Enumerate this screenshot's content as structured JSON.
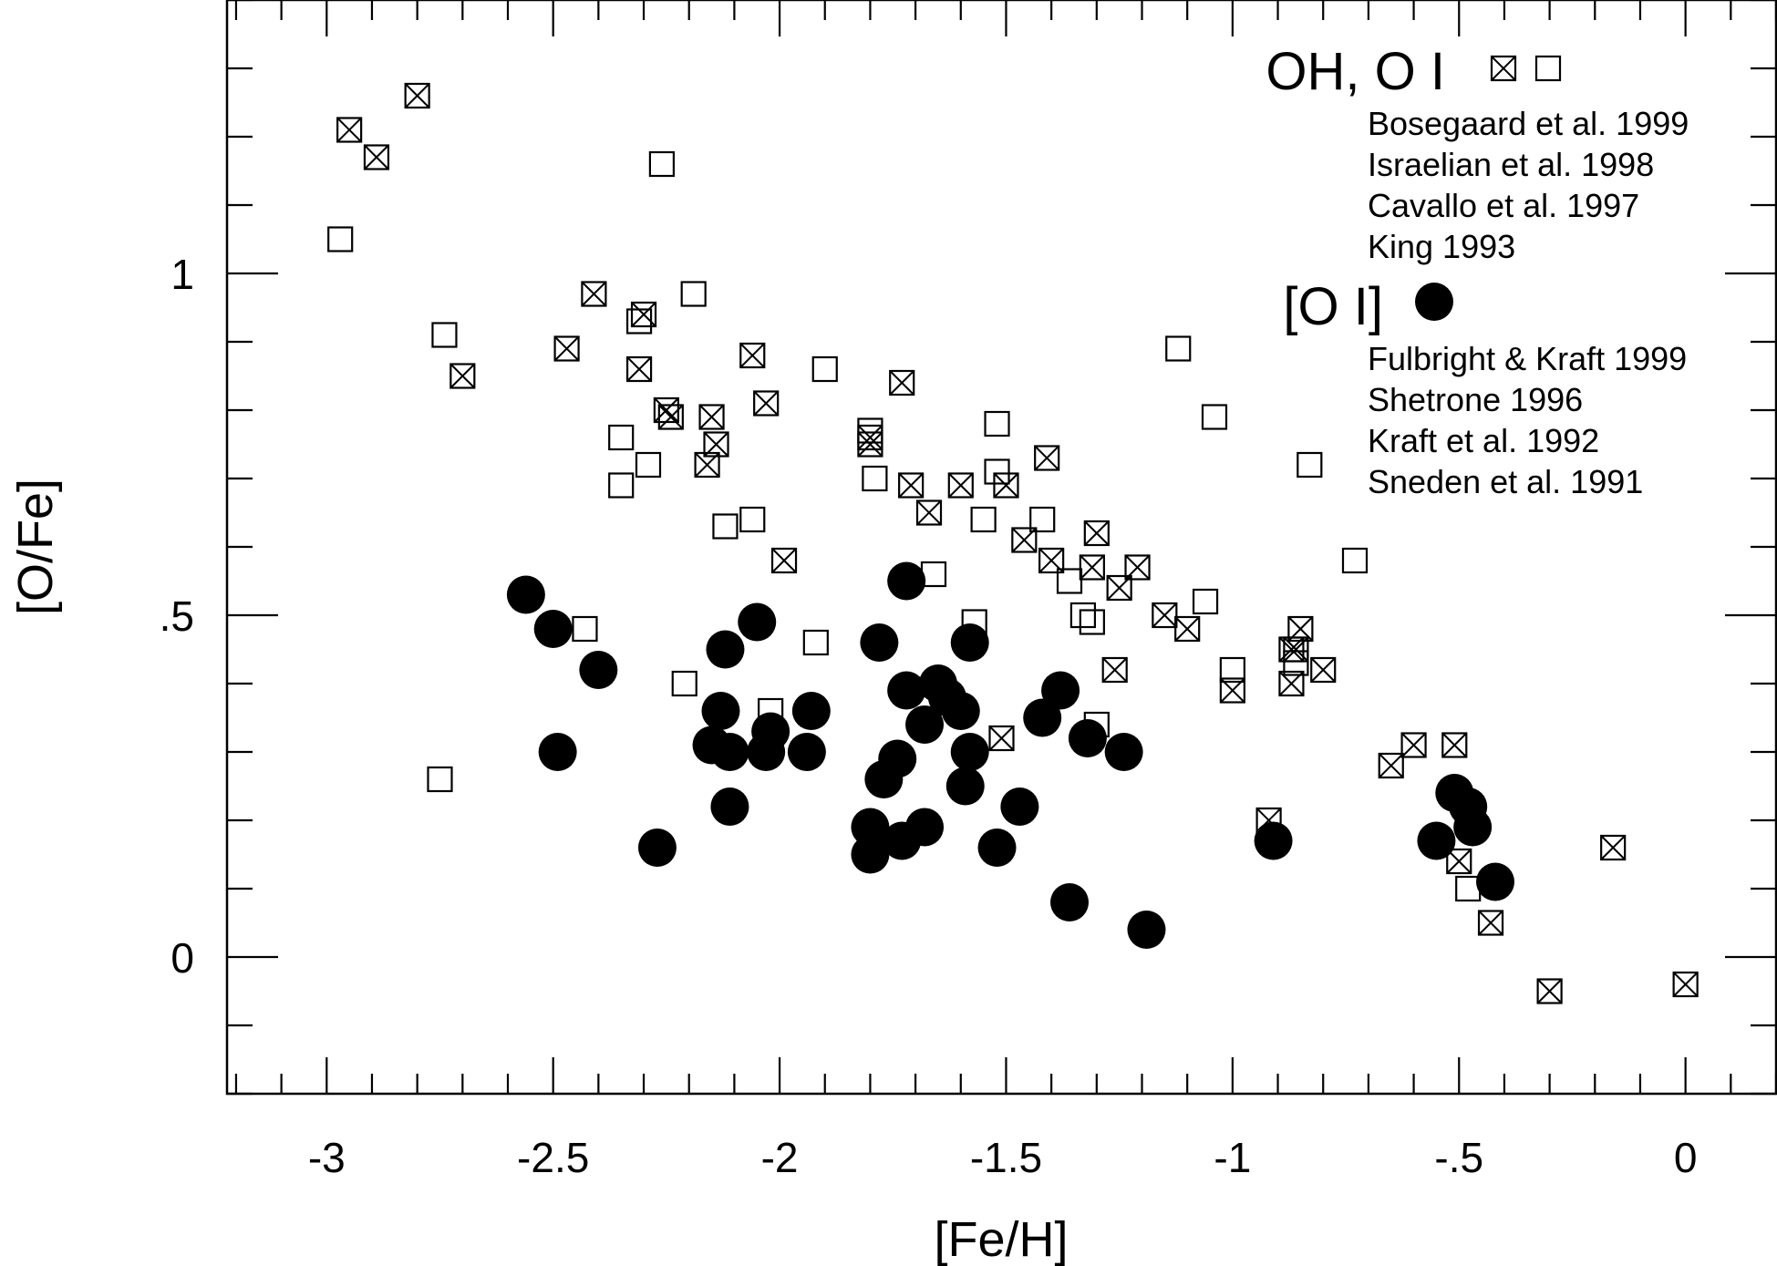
{
  "chart_data": {
    "type": "scatter",
    "xlabel": "[Fe/H]",
    "ylabel": "[O/Fe]",
    "xlim": [
      -3.22,
      0.2
    ],
    "ylim": [
      -0.2,
      1.4
    ],
    "x_ticks": [
      {
        "value": -3,
        "label": "-3"
      },
      {
        "value": -2.5,
        "label": "-2.5"
      },
      {
        "value": -2,
        "label": "-2"
      },
      {
        "value": -1.5,
        "label": "-1.5"
      },
      {
        "value": -1,
        "label": "-1"
      },
      {
        "value": -0.5,
        "label": "-.5"
      },
      {
        "value": 0,
        "label": "0"
      }
    ],
    "y_ticks": [
      {
        "value": 0,
        "label": "0"
      },
      {
        "value": 0.5,
        "label": ".5"
      },
      {
        "value": 1,
        "label": "1"
      }
    ],
    "grid": false,
    "legend": {
      "placement": "top-right",
      "groups": [
        {
          "heading": "OH, O I",
          "markers": [
            "crossed-square",
            "open-square"
          ],
          "references": [
            "Bosegaard et al. 1999",
            "Israelian et al. 1998",
            "Cavallo et al. 1997",
            "King 1993"
          ]
        },
        {
          "heading": "[O I]",
          "markers": [
            "filled-circle"
          ],
          "references": [
            "Fulbright & Kraft 1999",
            "Shetrone 1996",
            "Kraft et al. 1992",
            "Sneden et al. 1991"
          ]
        }
      ]
    },
    "series": [
      {
        "marker": "crossed-square",
        "points": [
          [
            -2.8,
            1.26
          ],
          [
            -2.95,
            1.21
          ],
          [
            -2.89,
            1.17
          ],
          [
            -2.7,
            0.85
          ],
          [
            -2.41,
            0.97
          ],
          [
            -2.47,
            0.89
          ],
          [
            -2.3,
            0.94
          ],
          [
            -2.31,
            0.86
          ],
          [
            -2.25,
            0.8
          ],
          [
            -2.24,
            0.79
          ],
          [
            -2.15,
            0.79
          ],
          [
            -2.14,
            0.75
          ],
          [
            -2.16,
            0.72
          ],
          [
            -2.06,
            0.88
          ],
          [
            -2.03,
            0.81
          ],
          [
            -1.99,
            0.58
          ],
          [
            -1.8,
            0.76
          ],
          [
            -1.8,
            0.75
          ],
          [
            -1.73,
            0.84
          ],
          [
            -1.71,
            0.69
          ],
          [
            -1.67,
            0.65
          ],
          [
            -1.6,
            0.69
          ],
          [
            -1.5,
            0.69
          ],
          [
            -1.41,
            0.73
          ],
          [
            -1.46,
            0.61
          ],
          [
            -1.4,
            0.58
          ],
          [
            -1.3,
            0.62
          ],
          [
            -1.31,
            0.57
          ],
          [
            -1.21,
            0.57
          ],
          [
            -1.25,
            0.54
          ],
          [
            -1.15,
            0.5
          ],
          [
            -1.1,
            0.48
          ],
          [
            -0.85,
            0.48
          ],
          [
            -0.87,
            0.45
          ],
          [
            -0.86,
            0.45
          ],
          [
            -0.87,
            0.4
          ],
          [
            -0.8,
            0.42
          ],
          [
            -1.26,
            0.42
          ],
          [
            -1.0,
            0.39
          ],
          [
            -1.51,
            0.32
          ],
          [
            -0.65,
            0.28
          ],
          [
            -0.6,
            0.31
          ],
          [
            -0.51,
            0.31
          ],
          [
            -0.92,
            0.2
          ],
          [
            -0.5,
            0.14
          ],
          [
            -0.16,
            0.16
          ],
          [
            -0.43,
            0.05
          ],
          [
            -0.3,
            -0.05
          ],
          [
            0.0,
            -0.04
          ]
        ]
      },
      {
        "marker": "open-square",
        "points": [
          [
            -2.97,
            1.05
          ],
          [
            -2.26,
            1.16
          ],
          [
            -2.74,
            0.91
          ],
          [
            -2.31,
            0.93
          ],
          [
            -2.19,
            0.97
          ],
          [
            -2.35,
            0.76
          ],
          [
            -2.35,
            0.69
          ],
          [
            -2.29,
            0.72
          ],
          [
            -2.12,
            0.63
          ],
          [
            -2.06,
            0.64
          ],
          [
            -1.9,
            0.86
          ],
          [
            -1.8,
            0.77
          ],
          [
            -1.79,
            0.7
          ],
          [
            -1.52,
            0.78
          ],
          [
            -1.52,
            0.71
          ],
          [
            -1.55,
            0.64
          ],
          [
            -1.42,
            0.64
          ],
          [
            -1.12,
            0.89
          ],
          [
            -1.04,
            0.79
          ],
          [
            -0.83,
            0.72
          ],
          [
            -0.73,
            0.58
          ],
          [
            -1.66,
            0.56
          ],
          [
            -1.36,
            0.55
          ],
          [
            -1.33,
            0.5
          ],
          [
            -1.31,
            0.49
          ],
          [
            -1.57,
            0.49
          ],
          [
            -1.06,
            0.52
          ],
          [
            -2.43,
            0.48
          ],
          [
            -1.92,
            0.46
          ],
          [
            -2.21,
            0.4
          ],
          [
            -2.02,
            0.36
          ],
          [
            -1.0,
            0.42
          ],
          [
            -0.86,
            0.43
          ],
          [
            -1.3,
            0.34
          ],
          [
            -2.75,
            0.26
          ],
          [
            -0.48,
            0.1
          ]
        ]
      },
      {
        "marker": "filled-circle",
        "points": [
          [
            -2.56,
            0.53
          ],
          [
            -2.5,
            0.48
          ],
          [
            -2.4,
            0.42
          ],
          [
            -2.49,
            0.3
          ],
          [
            -2.27,
            0.16
          ],
          [
            -2.12,
            0.45
          ],
          [
            -2.05,
            0.49
          ],
          [
            -2.13,
            0.36
          ],
          [
            -2.15,
            0.31
          ],
          [
            -2.11,
            0.3
          ],
          [
            -2.02,
            0.33
          ],
          [
            -2.03,
            0.3
          ],
          [
            -1.93,
            0.36
          ],
          [
            -1.94,
            0.3
          ],
          [
            -2.11,
            0.22
          ],
          [
            -1.72,
            0.55
          ],
          [
            -1.78,
            0.46
          ],
          [
            -1.72,
            0.39
          ],
          [
            -1.65,
            0.4
          ],
          [
            -1.63,
            0.38
          ],
          [
            -1.68,
            0.34
          ],
          [
            -1.6,
            0.36
          ],
          [
            -1.58,
            0.46
          ],
          [
            -1.58,
            0.3
          ],
          [
            -1.74,
            0.29
          ],
          [
            -1.77,
            0.26
          ],
          [
            -1.59,
            0.25
          ],
          [
            -1.47,
            0.22
          ],
          [
            -1.8,
            0.19
          ],
          [
            -1.73,
            0.17
          ],
          [
            -1.68,
            0.19
          ],
          [
            -1.8,
            0.15
          ],
          [
            -1.52,
            0.16
          ],
          [
            -1.38,
            0.39
          ],
          [
            -1.42,
            0.35
          ],
          [
            -1.32,
            0.32
          ],
          [
            -1.24,
            0.3
          ],
          [
            -1.36,
            0.08
          ],
          [
            -1.19,
            0.04
          ],
          [
            -0.91,
            0.17
          ],
          [
            -0.55,
            0.17
          ],
          [
            -0.51,
            0.24
          ],
          [
            -0.48,
            0.22
          ],
          [
            -0.47,
            0.19
          ],
          [
            -0.42,
            0.11
          ]
        ]
      }
    ]
  }
}
